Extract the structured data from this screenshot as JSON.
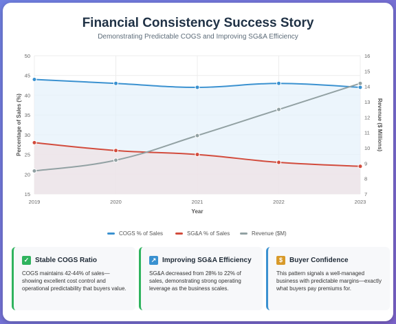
{
  "title": "Financial Consistency Success Story",
  "subtitle": "Demonstrating Predictable COGS and Improving SG&A Efficiency",
  "chart_data": {
    "type": "line",
    "categories": [
      "2019",
      "2020",
      "2021",
      "2022",
      "2023"
    ],
    "xlabel": "Year",
    "ylabel_left": "Percentage of Sales (%)",
    "ylabel_right": "Revenue ($ Millions)",
    "ylim_left": [
      15,
      50
    ],
    "yticks_left": [
      15,
      20,
      25,
      30,
      35,
      40,
      45,
      50
    ],
    "ylim_right": [
      7,
      16
    ],
    "yticks_right": [
      7,
      8,
      9,
      10,
      11,
      12,
      13,
      14,
      15,
      16
    ],
    "grid": true,
    "legend_position": "bottom",
    "series": [
      {
        "name": "COGS % of Sales",
        "axis": "left",
        "color": "#3a91d0",
        "fill": "#e6f1fb",
        "values": [
          44,
          43,
          42,
          43,
          42
        ]
      },
      {
        "name": "SG&A % of Sales",
        "axis": "left",
        "color": "#d24b3c",
        "fill": "#efe2e6",
        "values": [
          28,
          26,
          25,
          23,
          22
        ]
      },
      {
        "name": "Revenue ($M)",
        "axis": "right",
        "color": "#92a1a3",
        "values": [
          8.5,
          9.2,
          10.8,
          12.5,
          14.2
        ]
      }
    ]
  },
  "boxes": [
    {
      "icon": "check-mark-icon",
      "icon_glyph": "✓",
      "accent": "#2fb35e",
      "title": "Stable COGS Ratio",
      "text": "COGS maintains 42-44% of sales—showing excellent cost control and operational predictability that buyers value."
    },
    {
      "icon": "chart-increasing-icon",
      "icon_glyph": "↗",
      "accent": "#2fb35e",
      "title": "Improving SG&A Efficiency",
      "text": "SG&A decreased from 28% to 22% of sales, demonstrating strong operating leverage as the business scales."
    },
    {
      "icon": "money-bag-icon",
      "icon_glyph": "$",
      "accent": "#3a91d0",
      "title": "Buyer Confidence",
      "text": "This pattern signals a well-managed business with predictable margins—exactly what buyers pay premiums for."
    }
  ]
}
